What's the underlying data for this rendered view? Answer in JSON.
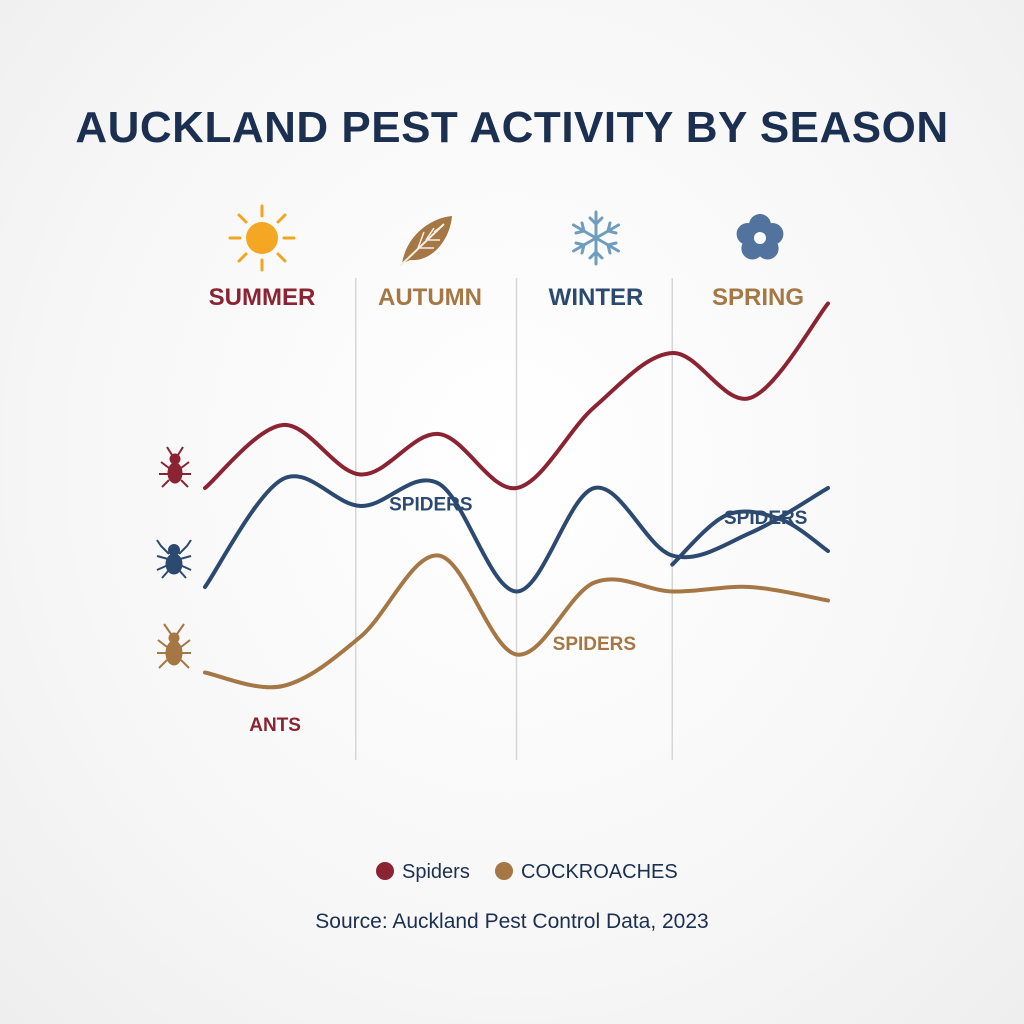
{
  "chart_data": {
    "type": "line",
    "title": "AUCKLAND PEST ACTIVITY BY SEASON",
    "categories": [
      "SUMMER",
      "AUTUMN",
      "WINTER",
      "SPRING"
    ],
    "x": [
      0,
      0.5,
      1,
      1.5,
      2,
      2.5,
      3,
      3.5,
      4,
      4.5,
      5,
      5.5,
      6,
      6.5,
      7,
      7.5,
      8
    ],
    "series": [
      {
        "name": "",
        "color": "#8b2332",
        "values": [
          5.6,
          7.0,
          5.9,
          6.8,
          5.6,
          7.4,
          8.6,
          7.6,
          9.7,
          9.7,
          9.6,
          9.6,
          9.6,
          9.6,
          9.6,
          9.6,
          9.6
        ]
      },
      {
        "name": "",
        "color": "#2c4a70",
        "values": [
          3.4,
          5.8,
          5.2,
          5.7,
          3.3,
          5.6,
          4.1,
          4.6,
          5.6,
          4.6,
          4.6,
          4.6,
          4.6,
          4.6,
          4.6,
          4.6,
          4.6
        ]
      },
      {
        "name": "",
        "color": "#a57744",
        "values": [
          1.5,
          1.2,
          2.3,
          4.1,
          1.9,
          3.5,
          3.3,
          3.4,
          3.1,
          3.2,
          3.2,
          3.2,
          3.2,
          3.2,
          3.2,
          3.2,
          3.2
        ]
      }
    ],
    "annotations": [
      {
        "text": "SPIDERS",
        "x": 1.45,
        "y": 5.1,
        "color": "#2c4a70"
      },
      {
        "text": "SPIDERS",
        "x": 3.6,
        "y": 4.8,
        "color": "#2c4a70"
      },
      {
        "text": "SPIDERS",
        "x": 2.5,
        "y": 2.0,
        "color": "#a57744"
      },
      {
        "text": "ANTS",
        "x": 0.45,
        "y": 0.2,
        "color": "#8b2332"
      }
    ],
    "legend": [
      {
        "label": "Spiders",
        "color": "#8b2332"
      },
      {
        "label": "COCKROACHES",
        "color": "#a57744"
      }
    ],
    "legend_position": "bottom",
    "grid": false,
    "ylim": [
      0,
      10
    ]
  },
  "season_icons": [
    "sun-icon",
    "leaf-icon",
    "snowflake-icon",
    "flower-icon"
  ],
  "season_colors": [
    "#8b2332",
    "#a57744",
    "#2c4a70",
    "#a57744"
  ],
  "row_icons": [
    {
      "icon": "bug-icon",
      "color": "#8b2332"
    },
    {
      "icon": "spider-icon",
      "color": "#2c4a70"
    },
    {
      "icon": "cockroach-icon",
      "color": "#a57744"
    }
  ],
  "source": "Source: Auckland Pest Control Data, 2023"
}
